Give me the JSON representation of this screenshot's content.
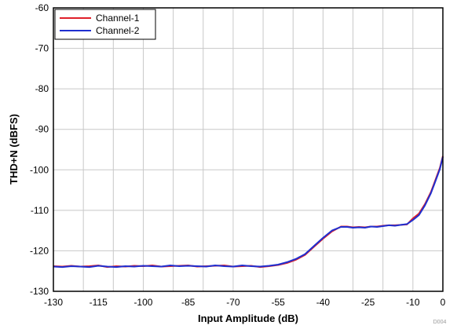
{
  "chart_data": {
    "type": "line",
    "xlabel": "Input Amplitude (dB)",
    "ylabel": "THD+N (dBFS)",
    "xlim": [
      -130,
      0
    ],
    "ylim": [
      -130,
      -60
    ],
    "x_ticks": [
      -130,
      -115,
      -100,
      -85,
      -70,
      -55,
      -40,
      -25,
      -10,
      0
    ],
    "x_grid": [
      -130,
      -120,
      -110,
      -100,
      -90,
      -80,
      -70,
      -60,
      -50,
      -40,
      -30,
      -20,
      -10,
      0
    ],
    "y_ticks": [
      -60,
      -70,
      -80,
      -90,
      -100,
      -110,
      -120,
      -130
    ],
    "grid": true,
    "legend_position": "top-left",
    "series": [
      {
        "name": "Channel-1",
        "color": "#e0202a",
        "x": [
          -130,
          -127,
          -124,
          -121,
          -118,
          -115,
          -112,
          -109,
          -106,
          -103,
          -100,
          -97,
          -94,
          -91,
          -88,
          -85,
          -82,
          -79,
          -76,
          -73,
          -70,
          -67,
          -64,
          -61,
          -58,
          -55,
          -52,
          -49,
          -46,
          -43,
          -40,
          -37,
          -34,
          -32,
          -30,
          -28,
          -26,
          -24,
          -22,
          -20,
          -18,
          -16,
          -14,
          -12,
          -10,
          -8,
          -6,
          -4,
          -3,
          -2,
          -1,
          0
        ],
        "y": [
          -123.8,
          -123.9,
          -123.7,
          -123.9,
          -123.8,
          -123.6,
          -124.0,
          -123.8,
          -123.9,
          -123.7,
          -123.8,
          -123.6,
          -123.9,
          -123.8,
          -123.7,
          -123.6,
          -123.9,
          -123.8,
          -123.7,
          -123.6,
          -123.9,
          -123.8,
          -123.7,
          -124.0,
          -123.8,
          -123.5,
          -123.0,
          -122.2,
          -121.0,
          -119.0,
          -117.0,
          -115.2,
          -114.0,
          -114.0,
          -114.2,
          -114.1,
          -114.2,
          -114.0,
          -114.0,
          -113.8,
          -113.7,
          -113.7,
          -113.6,
          -113.5,
          -112.0,
          -110.8,
          -108.5,
          -105.5,
          -103.5,
          -101.5,
          -99.5,
          -96.6
        ]
      },
      {
        "name": "Channel-2",
        "color": "#1f2fd0",
        "x": [
          -130,
          -127,
          -124,
          -121,
          -118,
          -115,
          -112,
          -109,
          -106,
          -103,
          -100,
          -97,
          -94,
          -91,
          -88,
          -85,
          -82,
          -79,
          -76,
          -73,
          -70,
          -67,
          -64,
          -61,
          -58,
          -55,
          -52,
          -49,
          -46,
          -43,
          -40,
          -37,
          -34,
          -32,
          -30,
          -28,
          -26,
          -24,
          -22,
          -20,
          -18,
          -16,
          -14,
          -12,
          -10,
          -8,
          -6,
          -4,
          -3,
          -2,
          -1,
          0
        ],
        "y": [
          -123.9,
          -124.0,
          -123.8,
          -123.9,
          -124.0,
          -123.7,
          -123.9,
          -124.0,
          -123.8,
          -123.9,
          -123.7,
          -123.8,
          -123.9,
          -123.6,
          -123.8,
          -123.7,
          -123.8,
          -123.9,
          -123.6,
          -123.8,
          -123.9,
          -123.6,
          -123.8,
          -123.9,
          -123.7,
          -123.4,
          -122.8,
          -122.0,
          -120.8,
          -118.8,
          -116.8,
          -115.0,
          -114.1,
          -114.1,
          -114.3,
          -114.2,
          -114.3,
          -114.0,
          -114.1,
          -113.9,
          -113.7,
          -113.8,
          -113.6,
          -113.4,
          -112.4,
          -111.2,
          -108.8,
          -105.8,
          -103.8,
          -101.8,
          -99.8,
          -96.8
        ]
      }
    ]
  },
  "figure_code": "D004"
}
